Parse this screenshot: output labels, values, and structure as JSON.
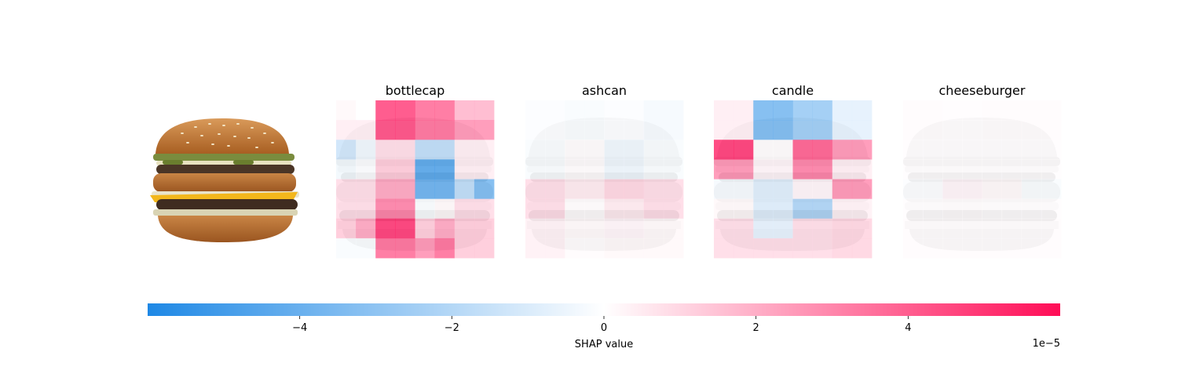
{
  "chart_data": {
    "type": "heatmap",
    "panels": [
      {
        "title": "bottlecap",
        "grid": [
          [
            0.2,
            0,
            5,
            5,
            4,
            4,
            2,
            2
          ],
          [
            0.5,
            0.5,
            5,
            5,
            4,
            4,
            3,
            3
          ],
          [
            -1.5,
            -0.5,
            1,
            1,
            -2,
            -2,
            0.5,
            0.5
          ],
          [
            -0.4,
            -0.1,
            1.5,
            1.5,
            -5,
            -5,
            0.5,
            0.5
          ],
          [
            1,
            1,
            2.5,
            2.5,
            -4.5,
            -4.5,
            -2,
            -4
          ],
          [
            1,
            1,
            3.5,
            3.5,
            -0.2,
            0.2,
            1,
            1
          ],
          [
            1.5,
            2.5,
            5.5,
            5.5,
            1.5,
            2.5,
            1.5,
            1.5
          ],
          [
            -0.2,
            -0.2,
            4,
            4,
            3,
            4,
            1.5,
            1.5
          ]
        ]
      },
      {
        "title": "ashcan",
        "grid": [
          [
            -0.1,
            -0.1,
            -0.2,
            -0.2,
            -0.1,
            -0.1,
            -0.3,
            -0.3
          ],
          [
            -0.1,
            -0.1,
            -0.2,
            -0.2,
            -0.1,
            -0.1,
            -0.3,
            -0.3
          ],
          [
            -0.2,
            -0.2,
            0.1,
            0.1,
            -0.5,
            -0.5,
            -0.2,
            -0.2
          ],
          [
            -0.2,
            -0.2,
            0.1,
            0.1,
            -0.5,
            -0.5,
            -0.2,
            -0.2
          ],
          [
            1,
            1,
            0.6,
            0.6,
            1.2,
            1.2,
            1,
            1
          ],
          [
            1,
            1,
            0.1,
            0.1,
            0.6,
            0.6,
            1,
            1
          ],
          [
            0.4,
            0.4,
            0.2,
            0.2,
            0.3,
            0.3,
            0.2,
            0.2
          ],
          [
            0.4,
            0.4,
            0.1,
            0.1,
            0.2,
            0.2,
            0.2,
            0.2
          ]
        ]
      },
      {
        "title": "candle",
        "grid": [
          [
            0.5,
            0.5,
            -4,
            -4,
            -3,
            -3,
            -0.8,
            -0.8
          ],
          [
            0.5,
            0.5,
            -4,
            -4,
            -3,
            -3,
            -0.8,
            -0.8
          ],
          [
            5.5,
            5.5,
            0.1,
            0.1,
            4.5,
            4.5,
            3,
            3
          ],
          [
            3,
            3,
            0.3,
            0.3,
            3.5,
            3.5,
            0.5,
            0.5
          ],
          [
            -0.3,
            -0.3,
            -1,
            -1,
            0.3,
            0.3,
            3,
            3
          ],
          [
            0.2,
            0.2,
            -1,
            -1,
            -2.5,
            -2.5,
            0.4,
            0.4
          ],
          [
            1,
            1,
            -0.8,
            -0.8,
            1,
            1,
            1.2,
            1.2
          ],
          [
            1,
            1,
            1,
            1,
            1,
            1,
            1.2,
            1.2
          ]
        ]
      },
      {
        "title": "cheeseburger",
        "grid": [
          [
            0.1,
            0.1,
            0.05,
            0.05,
            0.1,
            0.1,
            0.1,
            0.1
          ],
          [
            0.1,
            0.1,
            0.05,
            0.05,
            0.1,
            0.1,
            0.1,
            0.1
          ],
          [
            0.05,
            0.05,
            0.05,
            0.05,
            0.05,
            0.05,
            0.05,
            0.05
          ],
          [
            0.05,
            0.05,
            0.05,
            0.05,
            0.05,
            0.05,
            0.05,
            0.05
          ],
          [
            -0.1,
            -0.1,
            0.3,
            0.3,
            0.2,
            0.2,
            -0.2,
            -0.2
          ],
          [
            0.05,
            0.05,
            0.1,
            0.1,
            0.05,
            0.05,
            0.05,
            0.05
          ],
          [
            0.1,
            0.1,
            0.1,
            0.1,
            0.1,
            0.1,
            0.1,
            0.1
          ],
          [
            0.1,
            0.1,
            0.1,
            0.1,
            0.1,
            0.1,
            0.1,
            0.1
          ]
        ]
      }
    ],
    "colorbar": {
      "label": "SHAP value",
      "range": [
        -6,
        6
      ],
      "ticks": [
        -4,
        -2,
        0,
        2,
        4
      ],
      "tick_labels": [
        "−4",
        "−2",
        "0",
        "2",
        "4"
      ],
      "offset_label": "1e−5",
      "colors": {
        "negative": "#1E88E5",
        "neutral": "#ffffff",
        "positive": "#FF0D57"
      }
    }
  },
  "input_image": {
    "subject": "cheeseburger photo"
  }
}
